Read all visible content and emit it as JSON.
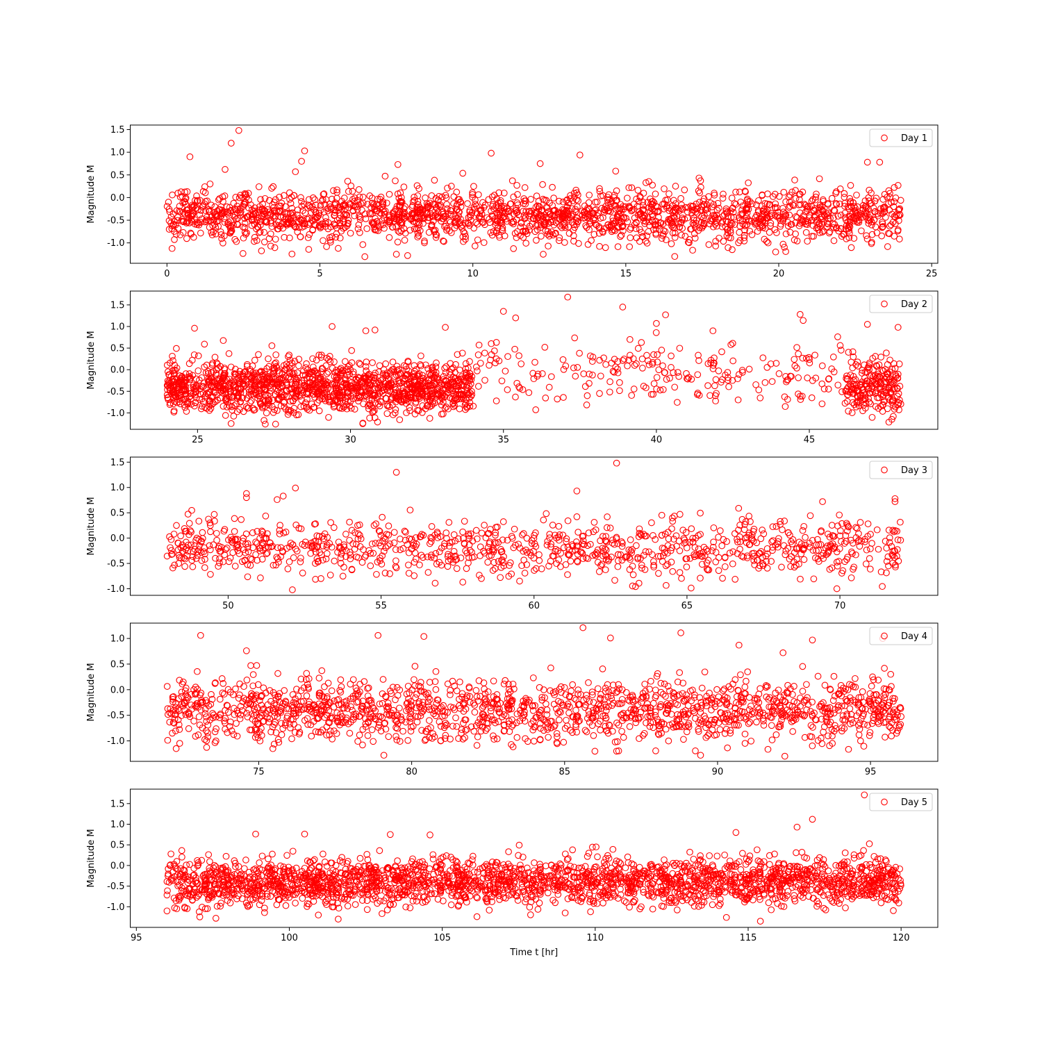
{
  "figure": {
    "xlabel": "Time t [hr]",
    "ylabel": "Magnitude M",
    "marker_color": "#ff0000",
    "marker_style": "hollow-circle"
  },
  "chart_data": [
    {
      "type": "scatter",
      "legend": "Day 1",
      "legend_position": "top-right",
      "xlim": [
        -1.2,
        25.2
      ],
      "ylim": [
        -1.45,
        1.6
      ],
      "xticks": [
        0,
        5,
        10,
        15,
        20,
        25
      ],
      "yticks": [
        -1.0,
        -0.5,
        0.0,
        0.5,
        1.0,
        1.5
      ],
      "x_range": [
        0,
        24
      ],
      "n_points": 2000,
      "typical_mean": -0.4,
      "typical_spread": 0.28,
      "outliers": [
        [
          0.75,
          0.9
        ],
        [
          1.9,
          0.62
        ],
        [
          2.1,
          1.2
        ],
        [
          2.35,
          1.48
        ],
        [
          4.2,
          0.57
        ],
        [
          4.5,
          1.03
        ],
        [
          4.4,
          0.8
        ],
        [
          7.55,
          0.73
        ],
        [
          10.6,
          0.98
        ],
        [
          12.2,
          0.75
        ],
        [
          13.5,
          0.94
        ],
        [
          16.6,
          -1.3
        ],
        [
          7.5,
          -1.25
        ],
        [
          12.3,
          -1.25
        ],
        [
          19.9,
          -1.2
        ],
        [
          22.9,
          0.78
        ],
        [
          23.3,
          0.78
        ]
      ]
    },
    {
      "type": "scatter",
      "legend": "Day 2",
      "legend_position": "top-right",
      "xlim": [
        22.8,
        49.2
      ],
      "ylim": [
        -1.38,
        1.82
      ],
      "xticks": [
        25,
        30,
        35,
        40,
        45
      ],
      "yticks": [
        -1.0,
        -0.5,
        0.0,
        0.5,
        1.0,
        1.5
      ],
      "dense_segments": [
        {
          "x_range": [
            24,
            34
          ],
          "n_points": 1400
        },
        {
          "x_range": [
            46.2,
            48
          ],
          "n_points": 220
        }
      ],
      "sparse_segment": {
        "x_range": [
          34,
          46.2
        ],
        "n_points": 230
      },
      "typical_mean": -0.4,
      "typical_spread": 0.3,
      "outliers": [
        [
          24.9,
          0.96
        ],
        [
          29.4,
          1.0
        ],
        [
          30.5,
          0.9
        ],
        [
          30.8,
          0.92
        ],
        [
          33.1,
          0.98
        ],
        [
          35.0,
          1.35
        ],
        [
          35.4,
          1.2
        ],
        [
          37.1,
          1.68
        ],
        [
          38.9,
          1.45
        ],
        [
          40.0,
          1.07
        ],
        [
          40.3,
          1.27
        ],
        [
          44.7,
          1.28
        ],
        [
          44.8,
          1.14
        ],
        [
          46.9,
          1.05
        ],
        [
          47.9,
          0.98
        ],
        [
          47.7,
          -1.15
        ],
        [
          30.4,
          -1.25
        ]
      ]
    },
    {
      "type": "scatter",
      "legend": "Day 3",
      "legend_position": "top-right",
      "xlim": [
        46.8,
        73.2
      ],
      "ylim": [
        -1.13,
        1.6
      ],
      "xticks": [
        50,
        55,
        60,
        65,
        70
      ],
      "yticks": [
        -1.0,
        -0.5,
        0.0,
        0.5,
        1.0,
        1.5
      ],
      "x_range": [
        48,
        72
      ],
      "n_points": 1000,
      "typical_mean": -0.2,
      "typical_spread": 0.27,
      "outliers": [
        [
          50.6,
          0.88
        ],
        [
          50.6,
          0.8
        ],
        [
          51.8,
          0.83
        ],
        [
          51.6,
          0.76
        ],
        [
          52.2,
          0.99
        ],
        [
          55.5,
          1.3
        ],
        [
          61.4,
          0.93
        ],
        [
          62.7,
          1.48
        ],
        [
          71.8,
          0.78
        ],
        [
          71.8,
          0.72
        ],
        [
          52.1,
          -1.02
        ],
        [
          69.9,
          -1.0
        ]
      ]
    },
    {
      "type": "scatter",
      "legend": "Day 4",
      "legend_position": "top-right",
      "xlim": [
        70.8,
        97.2
      ],
      "ylim": [
        -1.4,
        1.3
      ],
      "xticks": [
        75,
        80,
        85,
        90,
        95
      ],
      "yticks": [
        -1.0,
        -0.5,
        0.0,
        0.5,
        1.0
      ],
      "x_range": [
        72,
        96
      ],
      "n_points": 1600,
      "typical_mean": -0.4,
      "typical_spread": 0.3,
      "outliers": [
        [
          73.1,
          1.06
        ],
        [
          74.6,
          0.76
        ],
        [
          78.9,
          1.06
        ],
        [
          80.4,
          1.04
        ],
        [
          85.6,
          1.21
        ],
        [
          86.5,
          1.01
        ],
        [
          88.8,
          1.11
        ],
        [
          90.7,
          0.87
        ],
        [
          93.1,
          0.97
        ],
        [
          95.4,
          1.0
        ],
        [
          72.3,
          -1.15
        ],
        [
          86.7,
          -1.2
        ],
        [
          92.2,
          -1.3
        ]
      ]
    },
    {
      "type": "scatter",
      "legend": "Day 5",
      "legend_position": "top-right",
      "xlim": [
        94.8,
        121.2
      ],
      "ylim": [
        -1.5,
        1.85
      ],
      "xticks": [
        95,
        100,
        105,
        110,
        115,
        120
      ],
      "yticks": [
        -1.0,
        -0.5,
        0.0,
        0.5,
        1.0,
        1.5
      ],
      "x_range": [
        96,
        120
      ],
      "n_points": 2400,
      "typical_mean": -0.4,
      "typical_spread": 0.28,
      "outliers": [
        [
          98.9,
          0.76
        ],
        [
          100.5,
          0.76
        ],
        [
          103.3,
          0.75
        ],
        [
          104.6,
          0.74
        ],
        [
          114.6,
          0.8
        ],
        [
          116.6,
          0.93
        ],
        [
          117.1,
          1.12
        ],
        [
          118.8,
          1.71
        ],
        [
          101.6,
          -1.3
        ],
        [
          115.4,
          -1.35
        ],
        [
          97.6,
          -1.28
        ]
      ]
    }
  ]
}
